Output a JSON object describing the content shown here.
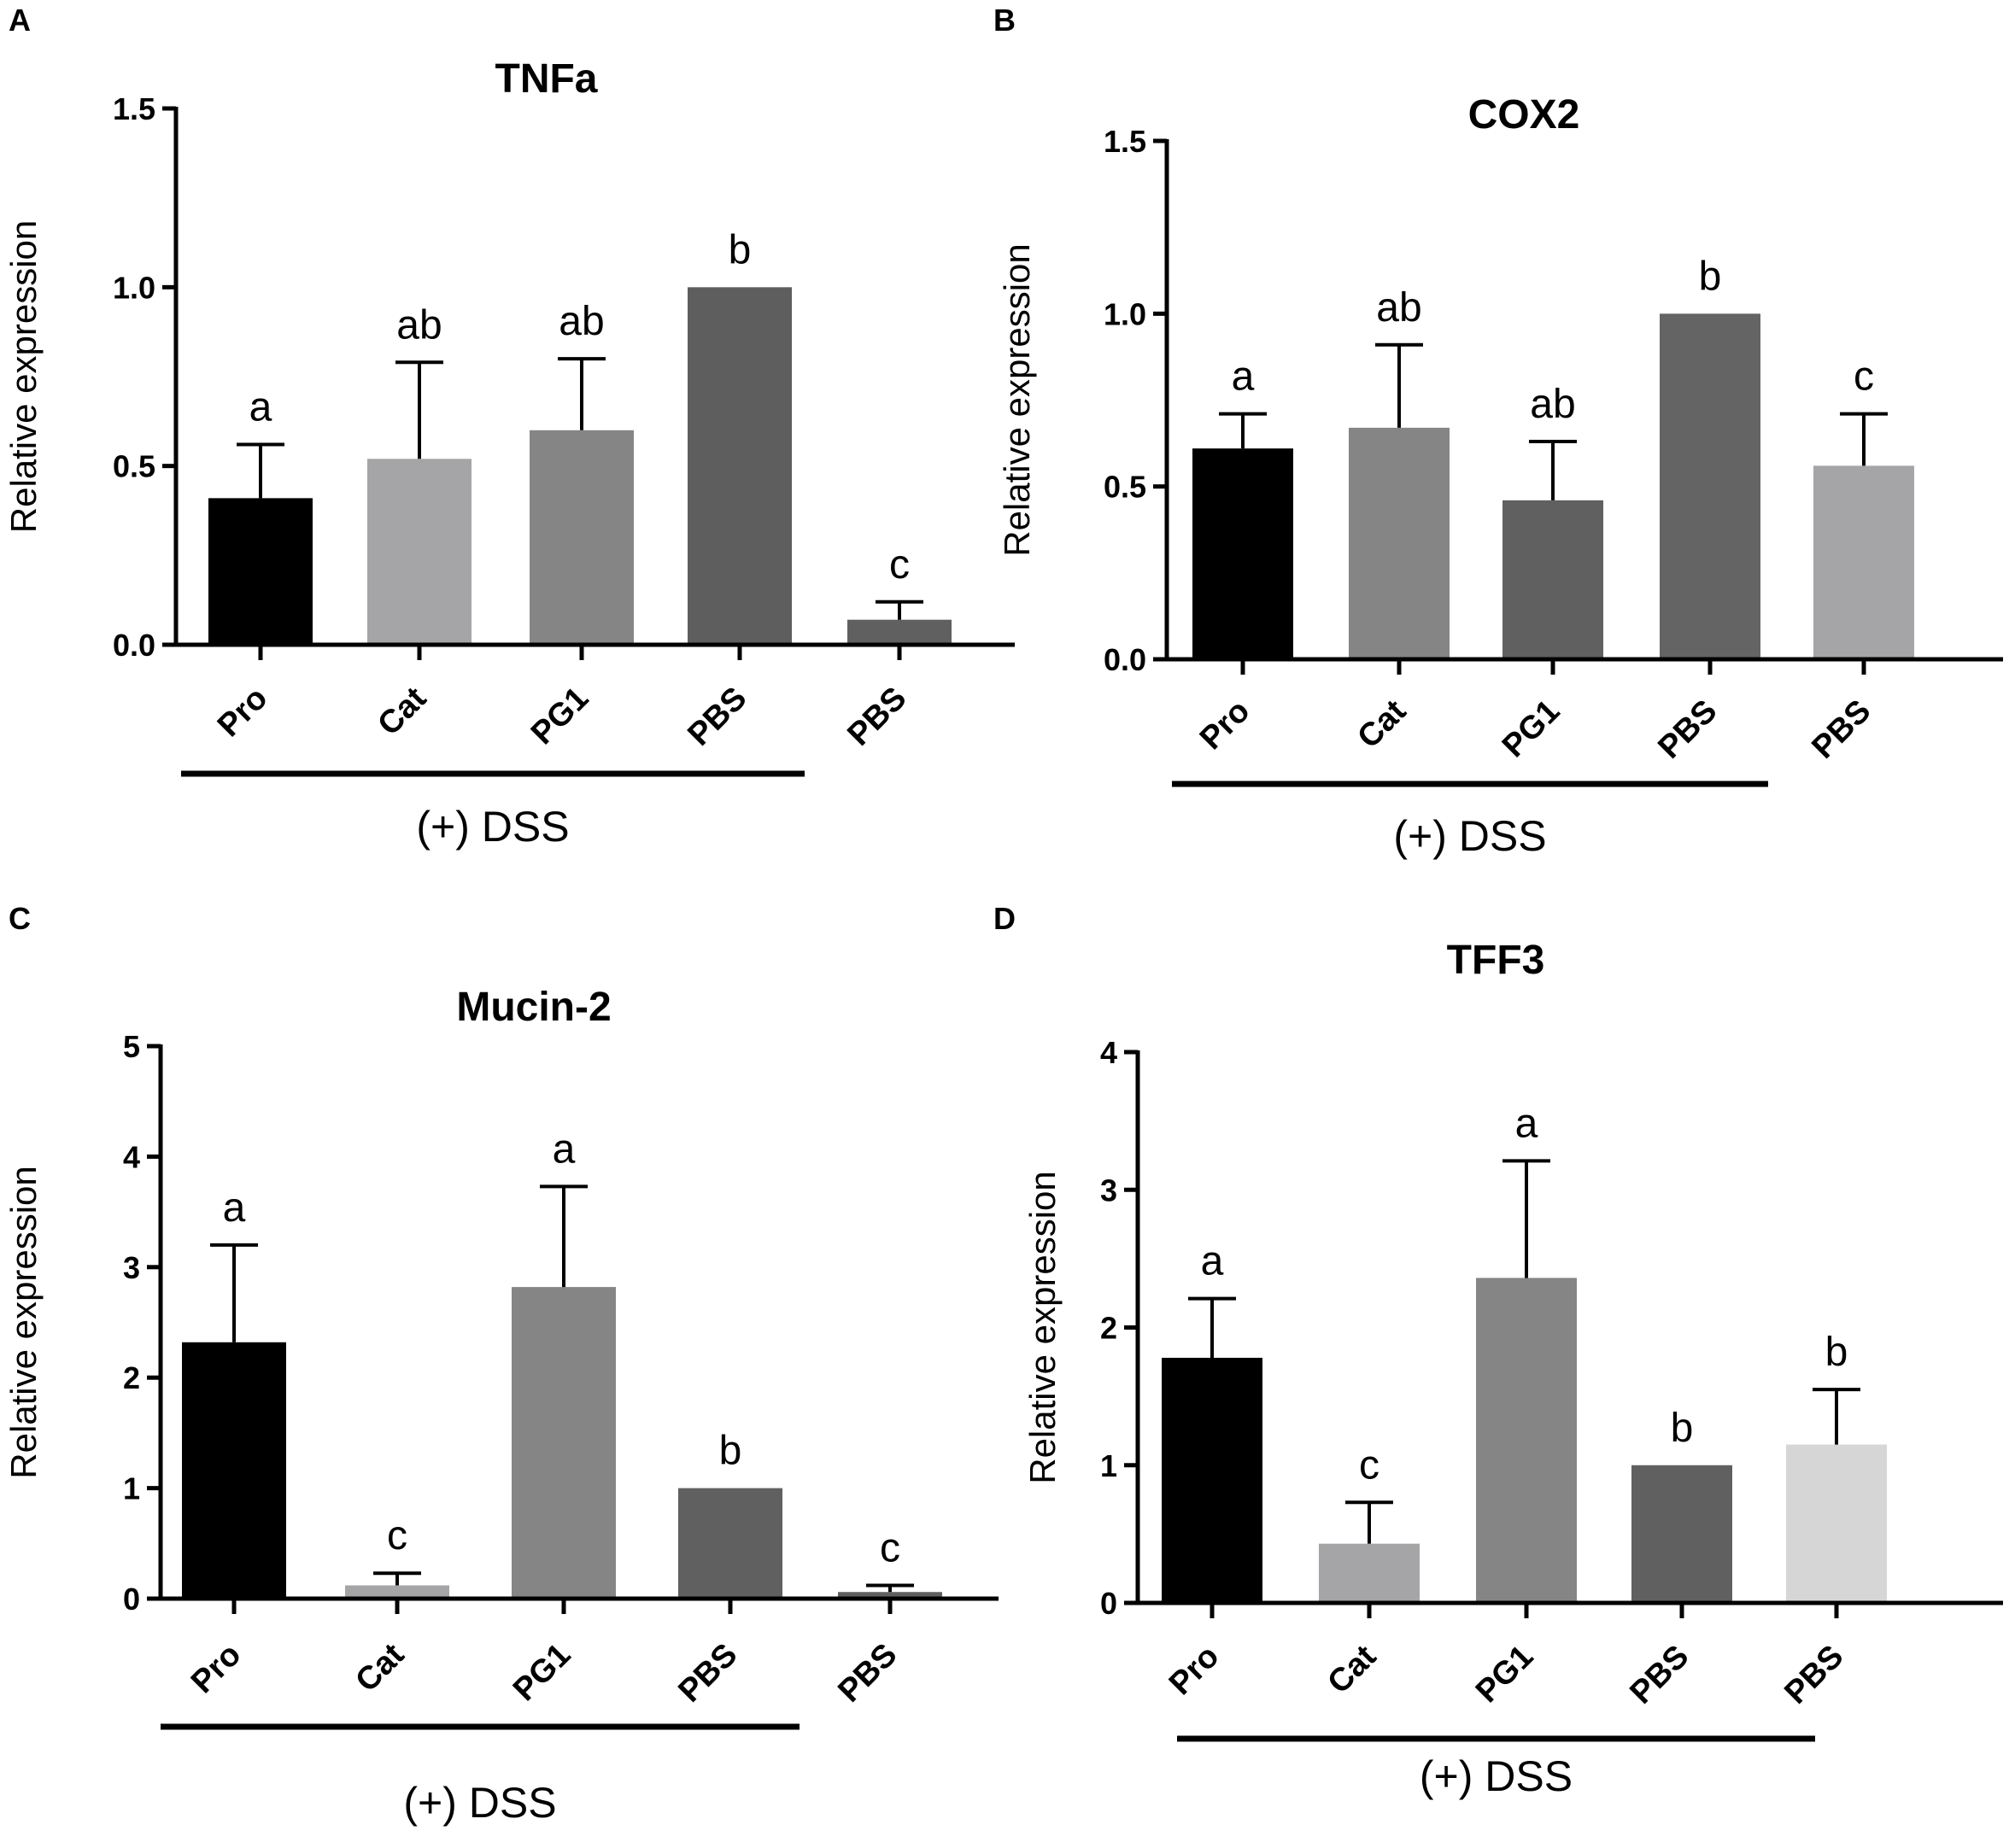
{
  "chart_data": [
    {
      "type": "bar",
      "panel": "A",
      "title": "TNFa",
      "ylabel": "Relative expression",
      "ylim": [
        0,
        1.5
      ],
      "yticks": [
        "0.0",
        "0.5",
        "1.0",
        "1.5"
      ],
      "ytick_values": [
        0,
        0.5,
        1.0,
        1.5
      ],
      "categories": [
        "Pro",
        "Cat",
        "PG1",
        "PBS",
        "PBS"
      ],
      "values": [
        0.41,
        0.52,
        0.6,
        1.0,
        0.07
      ],
      "errors": [
        0.15,
        0.27,
        0.2,
        0,
        0.05
      ],
      "colors": [
        "#000000",
        "#a5a5a8",
        "#858585",
        "#5e5e5e",
        "#606060"
      ],
      "significance": [
        "a",
        "ab",
        "ab",
        "b",
        "c"
      ],
      "group_label": "(+) DSS",
      "group_bar_covers": 4
    },
    {
      "type": "bar",
      "panel": "B",
      "title": "COX2",
      "ylabel": "Relative expression",
      "ylim": [
        0,
        1.5
      ],
      "yticks": [
        "0.0",
        "0.5",
        "1.0",
        "1.5"
      ],
      "ytick_values": [
        0,
        0.5,
        1.0,
        1.5
      ],
      "categories": [
        "Pro",
        "Cat",
        "PG1",
        "PBS",
        "PBS"
      ],
      "values": [
        0.61,
        0.67,
        0.46,
        1.0,
        0.56
      ],
      "errors": [
        0.1,
        0.24,
        0.17,
        0,
        0.15
      ],
      "colors": [
        "#000000",
        "#858585",
        "#606060",
        "#646464",
        "#a5a5a8"
      ],
      "significance": [
        "a",
        "ab",
        "ab",
        "b",
        "c"
      ],
      "group_label": "(+) DSS",
      "group_bar_covers": 4
    },
    {
      "type": "bar",
      "panel": "C",
      "title": "Mucin-2",
      "ylabel": "Relative expression",
      "ylim": [
        0,
        5
      ],
      "yticks": [
        "0",
        "1",
        "2",
        "3",
        "4",
        "5"
      ],
      "ytick_values": [
        0,
        1,
        2,
        3,
        4,
        5
      ],
      "categories": [
        "Pro",
        "Cat",
        "PG1",
        "PBS",
        "PBS"
      ],
      "values": [
        2.32,
        0.12,
        2.82,
        1.0,
        0.06
      ],
      "errors": [
        0.88,
        0.11,
        0.91,
        0,
        0.06
      ],
      "colors": [
        "#000000",
        "#a5a5a8",
        "#858585",
        "#606060",
        "#606060"
      ],
      "significance": [
        "a",
        "c",
        "a",
        "b",
        "c"
      ],
      "group_label": "(+) DSS",
      "group_bar_covers": 4
    },
    {
      "type": "bar",
      "panel": "D",
      "title": "TFF3",
      "ylabel": "Relative expression",
      "ylim": [
        0,
        4
      ],
      "yticks": [
        "0",
        "1",
        "2",
        "3",
        "4"
      ],
      "ytick_values": [
        0,
        1,
        2,
        3,
        4
      ],
      "categories": [
        "Pro",
        "Cat",
        "PG1",
        "PBS",
        "PBS"
      ],
      "values": [
        1.78,
        0.43,
        2.36,
        1.0,
        1.15
      ],
      "errors": [
        0.43,
        0.3,
        0.85,
        0,
        0.4
      ],
      "colors": [
        "#000000",
        "#a5a5a8",
        "#858585",
        "#606060",
        "#d6d6d6"
      ],
      "significance": [
        "a",
        "c",
        "a",
        "b",
        "b"
      ],
      "group_label": "(+) DSS",
      "group_bar_covers": 4
    }
  ]
}
